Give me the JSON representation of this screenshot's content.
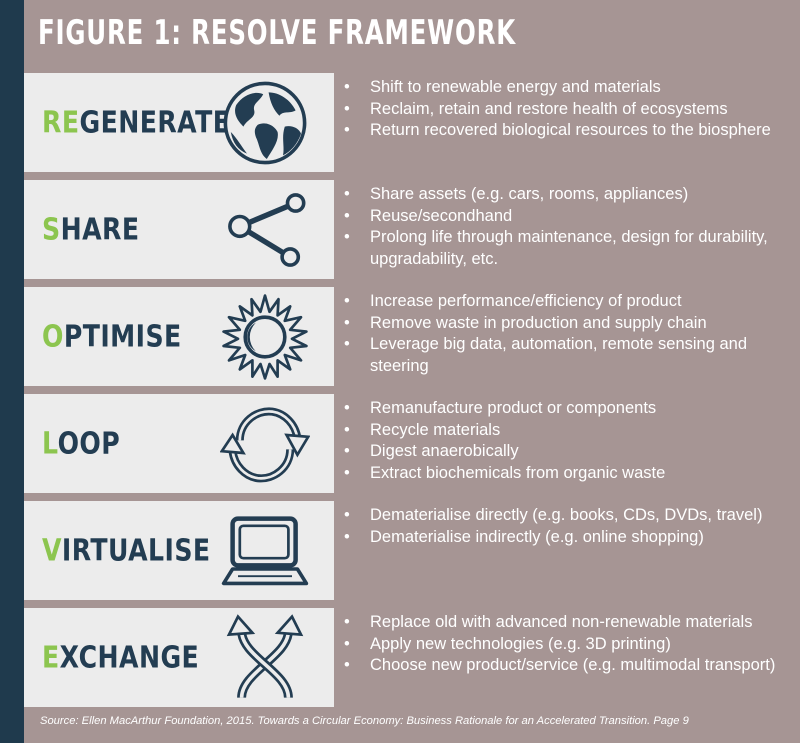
{
  "title": "FIGURE 1: RESOLVE FRAMEWORK",
  "colors": {
    "background": "#a69594",
    "left_bar": "#1f3a4d",
    "card": "#ececec",
    "label": "#233d52",
    "highlight": "#8cc54f",
    "text": "#ffffff"
  },
  "rows": [
    {
      "highlight": "RE",
      "rest": "GENERATE",
      "icon": "globe-icon",
      "bullets": [
        "Shift to renewable energy and materials",
        "Reclaim, retain and restore health of ecosystems",
        "Return recovered biological resources to the biosphere"
      ]
    },
    {
      "highlight": "S",
      "rest": "HARE",
      "icon": "share-icon",
      "bullets": [
        "Share assets (e.g. cars, rooms, appliances)",
        "Reuse/secondhand",
        "Prolong life through maintenance, design for durability, upgradability, etc."
      ]
    },
    {
      "highlight": "O",
      "rest": "PTIMISE",
      "icon": "sun-icon",
      "bullets": [
        "Increase performance/efficiency of product",
        "Remove waste in production and supply chain",
        "Leverage big data, automation, remote sensing and steering"
      ]
    },
    {
      "highlight": "L",
      "rest": "OOP",
      "icon": "loop-arrows-icon",
      "bullets": [
        "Remanufacture product or components",
        "Recycle materials",
        "Digest anaerobically",
        "Extract biochemicals from organic waste"
      ]
    },
    {
      "highlight": "V",
      "rest": "IRTUALISE",
      "icon": "laptop-icon",
      "bullets": [
        "Dematerialise directly (e.g. books, CDs, DVDs, travel)",
        "Dematerialise indirectly (e.g. online shopping)"
      ]
    },
    {
      "highlight": "E",
      "rest": "XCHANGE",
      "icon": "exchange-arrows-icon",
      "bullets": [
        "Replace old with advanced non-renewable materials",
        "Apply new technologies (e.g. 3D printing)",
        "Choose new product/service (e.g. multimodal transport)"
      ]
    }
  ],
  "source": "Source: Ellen MacArthur Foundation, 2015. Towards a Circular Economy: Business Rationale for an Accelerated Transition. Page 9"
}
